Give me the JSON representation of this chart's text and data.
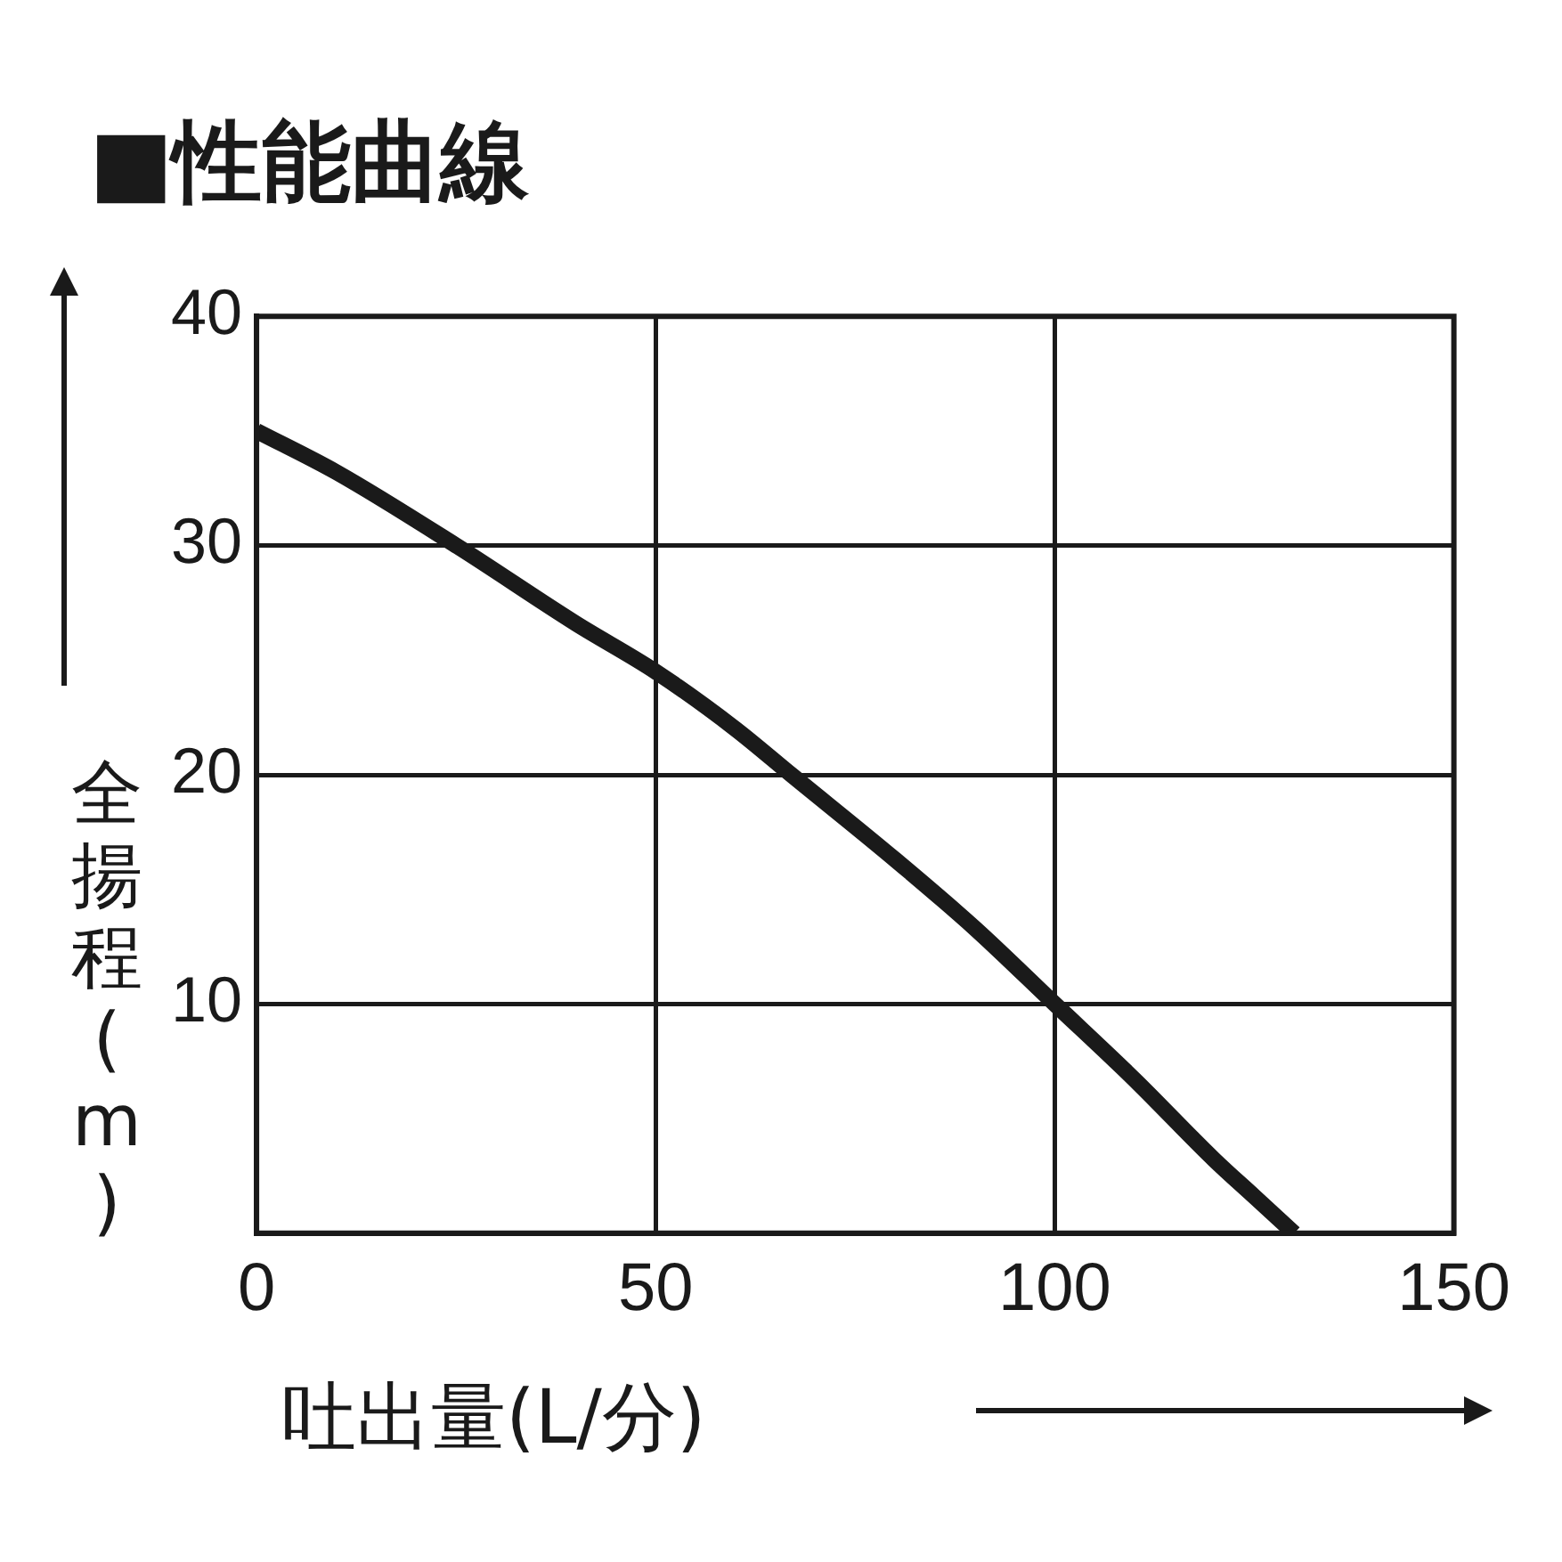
{
  "chart_data": {
    "type": "line",
    "title": "■性能曲線",
    "xlabel": "吐出量(L/分)",
    "ylabel": "全揚程(m)",
    "series": [
      {
        "color": "#1a1a1a",
        "x": [
          0,
          10,
          25,
          40,
          50,
          60,
          67,
          80,
          90,
          100,
          110,
          120,
          125,
          130
        ],
        "values": [
          35,
          33.2,
          30,
          26.6,
          24.5,
          22,
          20,
          16.3,
          13.3,
          10,
          6.7,
          3.2,
          1.6,
          0
        ]
      }
    ],
    "xlim": [
      0,
      150
    ],
    "xticks": [
      0,
      50,
      100,
      150
    ],
    "ylim": [
      0,
      40
    ],
    "yticks": [
      10,
      20,
      30,
      40
    ],
    "grid": true,
    "marker": "none",
    "line_style": "solid",
    "legend": false
  }
}
